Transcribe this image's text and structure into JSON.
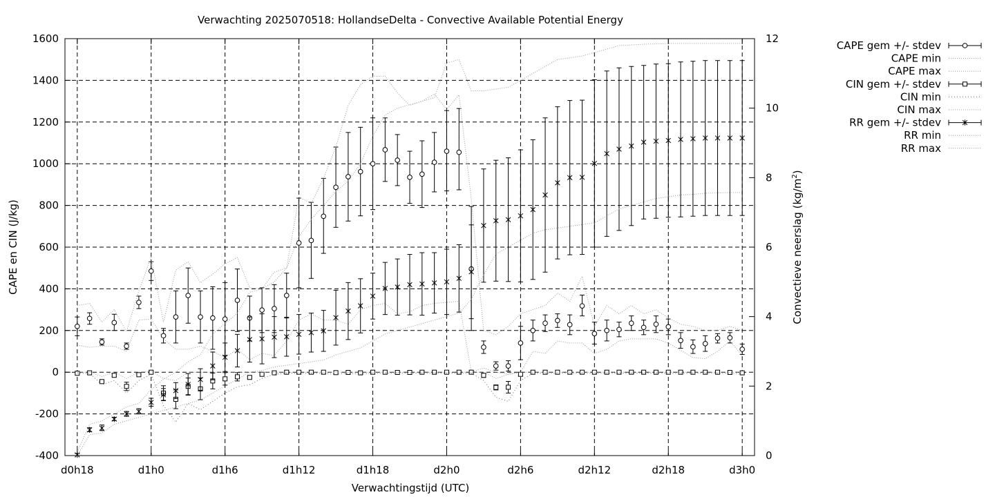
{
  "chart_data": {
    "type": "errorbar",
    "title": "Verwachting 2025070518: HollandseDelta - Convective Available Potential Energy",
    "xlabel": "Verwachtingstijd (UTC)",
    "ylabel": "CAPE en CIN (J/kg)",
    "y2label_prefix": "Convectieve neerslag (kg/m",
    "y2label_sup": "2",
    "y2label_suffix": ")",
    "x_unit": "forecast hours from d0h18",
    "xlim": [
      -1,
      55
    ],
    "ylim": [
      -400,
      1600
    ],
    "y2lim": [
      0,
      12
    ],
    "grid": true,
    "legend_position": "outside-right",
    "x_ticks": [
      {
        "x": 0,
        "label": "d0h18"
      },
      {
        "x": 6,
        "label": "d1h0"
      },
      {
        "x": 12,
        "label": "d1h6"
      },
      {
        "x": 18,
        "label": "d1h12"
      },
      {
        "x": 24,
        "label": "d1h18"
      },
      {
        "x": 30,
        "label": "d2h0"
      },
      {
        "x": 36,
        "label": "d2h6"
      },
      {
        "x": 42,
        "label": "d2h12"
      },
      {
        "x": 48,
        "label": "d2h18"
      },
      {
        "x": 54,
        "label": "d3h0"
      }
    ],
    "y_ticks": [
      -400,
      -200,
      0,
      200,
      400,
      600,
      800,
      1000,
      1200,
      1400,
      1600
    ],
    "y2_ticks": [
      0,
      2,
      4,
      6,
      8,
      10,
      12
    ],
    "legend": [
      {
        "label": "CAPE gem +/- stdev",
        "marker": "circle",
        "style": "errorbar"
      },
      {
        "label": "CAPE min",
        "style": "dotted"
      },
      {
        "label": "CAPE max",
        "style": "dotted"
      },
      {
        "label": "CIN gem +/- stdev",
        "marker": "square",
        "style": "errorbar"
      },
      {
        "label": "CIN min",
        "style": "dotted-dense"
      },
      {
        "label": "CIN max",
        "style": "dotted"
      },
      {
        "label": "RR gem +/- stdev",
        "marker": "star",
        "style": "errorbar"
      },
      {
        "label": "RR min",
        "style": "dotted"
      },
      {
        "label": "RR max",
        "style": "dotted"
      }
    ],
    "x": [
      0,
      1,
      2,
      3,
      4,
      5,
      6,
      7,
      8,
      9,
      10,
      11,
      12,
      13,
      14,
      15,
      16,
      17,
      18,
      19,
      20,
      21,
      22,
      23,
      24,
      25,
      26,
      27,
      28,
      29,
      30,
      31,
      32,
      33,
      34,
      35,
      36,
      37,
      38,
      39,
      40,
      41,
      42,
      43,
      44,
      45,
      46,
      47,
      48,
      49,
      50,
      51,
      52,
      53,
      54
    ],
    "series": [
      {
        "name": "CAPE gem +/- stdev",
        "axis": "y",
        "marker": "circle",
        "mean": [
          220,
          258,
          145,
          238,
          125,
          335,
          485,
          175,
          265,
          368,
          265,
          260,
          255,
          345,
          260,
          298,
          305,
          368,
          620,
          632,
          748,
          887,
          938,
          962,
          1000,
          1067,
          1017,
          935,
          950,
          1007,
          1060,
          1055,
          495,
          120,
          30,
          30,
          140,
          200,
          235,
          248,
          228,
          318,
          185,
          200,
          205,
          235,
          215,
          230,
          218,
          152,
          122,
          137,
          163,
          165,
          110
        ],
        "lower": [
          175,
          230,
          130,
          200,
          110,
          305,
          440,
          140,
          140,
          235,
          140,
          110,
          80,
          195,
          150,
          190,
          190,
          260,
          405,
          450,
          570,
          695,
          725,
          750,
          780,
          915,
          895,
          810,
          790,
          865,
          870,
          875,
          200,
          90,
          10,
          5,
          60,
          150,
          195,
          215,
          180,
          270,
          135,
          150,
          170,
          200,
          180,
          190,
          180,
          115,
          90,
          100,
          140,
          140,
          85
        ],
        "upper": [
          265,
          285,
          160,
          278,
          140,
          365,
          530,
          210,
          390,
          500,
          390,
          410,
          430,
          495,
          365,
          405,
          420,
          475,
          835,
          815,
          930,
          1080,
          1150,
          1175,
          1220,
          1220,
          1140,
          1060,
          1110,
          1150,
          1255,
          1265,
          795,
          150,
          50,
          55,
          220,
          250,
          275,
          280,
          275,
          370,
          240,
          250,
          240,
          270,
          250,
          270,
          255,
          190,
          155,
          175,
          185,
          190,
          135
        ]
      },
      {
        "name": "CAPE min",
        "axis": "y",
        "style": "dotted",
        "values": [
          130,
          120,
          125,
          125,
          100,
          250,
          255,
          160,
          110,
          110,
          125,
          100,
          70,
          110,
          60,
          90,
          80,
          150,
          250,
          280,
          250,
          250,
          230,
          300,
          320,
          330,
          280,
          290,
          320,
          330,
          335,
          340,
          0,
          20,
          0,
          -10,
          0,
          100,
          90,
          150,
          140,
          140,
          90,
          110,
          150,
          160,
          160,
          160,
          140,
          105,
          70,
          65,
          100,
          150,
          80
        ]
      },
      {
        "name": "CAPE max",
        "axis": "y",
        "style": "dotted",
        "values": [
          320,
          330,
          240,
          300,
          195,
          390,
          550,
          240,
          490,
          530,
          430,
          470,
          520,
          550,
          405,
          400,
          480,
          500,
          840,
          810,
          930,
          1080,
          1280,
          1380,
          1420,
          1420,
          1340,
          1280,
          1300,
          1335,
          1260,
          1330,
          830,
          200,
          180,
          220,
          280,
          300,
          320,
          380,
          340,
          460,
          220,
          320,
          280,
          320,
          280,
          300,
          260,
          230,
          220,
          200,
          200,
          220,
          200
        ]
      },
      {
        "name": "CIN gem +/- stdev",
        "axis": "y",
        "marker": "square",
        "mean": [
          -5,
          -3,
          -45,
          -15,
          -68,
          -12,
          0,
          -100,
          -130,
          -68,
          -80,
          -42,
          -32,
          -22,
          -25,
          -10,
          -3,
          0,
          0,
          0,
          0,
          -2,
          -1,
          -3,
          0,
          0,
          -1,
          -1,
          0,
          0,
          0,
          0,
          0,
          -15,
          -73,
          -72,
          -10,
          0,
          0,
          0,
          0,
          0,
          0,
          0,
          0,
          0,
          0,
          0,
          0,
          0,
          0,
          0,
          0,
          -1,
          -3
        ],
        "lower": [
          -5,
          -3,
          -50,
          -22,
          -88,
          -15,
          -3,
          -135,
          -175,
          -108,
          -132,
          -80,
          -62,
          -42,
          -30,
          -13,
          -5,
          -1,
          -1,
          -1,
          -1,
          -3,
          -2,
          -4,
          -1,
          -1,
          -2,
          -2,
          -1,
          -1,
          -1,
          -1,
          -1,
          -25,
          -85,
          -100,
          -18,
          -1,
          -1,
          -1,
          -1,
          -1,
          -1,
          -1,
          -1,
          -1,
          -1,
          -1,
          -1,
          -1,
          -1,
          -1,
          -1,
          -2,
          -4
        ],
        "upper": [
          -5,
          -3,
          -40,
          -8,
          -48,
          -9,
          3,
          -65,
          -85,
          -28,
          -28,
          -4,
          -2,
          -2,
          -20,
          -7,
          -1,
          1,
          1,
          1,
          1,
          -1,
          0,
          -2,
          1,
          1,
          0,
          0,
          1,
          1,
          1,
          1,
          1,
          -5,
          -61,
          -44,
          -2,
          1,
          1,
          1,
          1,
          1,
          1,
          1,
          1,
          1,
          1,
          1,
          1,
          1,
          1,
          1,
          1,
          0,
          -2
        ]
      },
      {
        "name": "CIN min",
        "axis": "y",
        "style": "dotted-dense",
        "values": [
          -5,
          -5,
          -60,
          -40,
          -100,
          -40,
          -10,
          -160,
          -240,
          -150,
          -180,
          -140,
          -100,
          -70,
          -60,
          -30,
          -10,
          -5,
          -5,
          -5,
          -5,
          -10,
          -5,
          -10,
          -5,
          -5,
          -5,
          -5,
          -5,
          -5,
          -5,
          -5,
          -5,
          -40,
          -120,
          -140,
          -40,
          -5,
          -5,
          -5,
          -5,
          -5,
          -5,
          -5,
          -5,
          -5,
          -5,
          -5,
          -5,
          -5,
          -5,
          -5,
          -5,
          -5,
          -10
        ]
      },
      {
        "name": "CIN max",
        "axis": "y",
        "style": "dotted",
        "values": [
          0,
          0,
          -20,
          0,
          -30,
          0,
          5,
          -30,
          -40,
          0,
          0,
          0,
          0,
          0,
          0,
          0,
          0,
          0,
          0,
          0,
          0,
          0,
          0,
          0,
          0,
          0,
          0,
          0,
          0,
          0,
          0,
          0,
          0,
          0,
          -30,
          -10,
          0,
          0,
          0,
          0,
          0,
          0,
          0,
          0,
          0,
          0,
          0,
          0,
          0,
          0,
          0,
          0,
          0,
          0,
          0
        ]
      },
      {
        "name": "RR gem +/- stdev",
        "axis": "y2",
        "marker": "star",
        "mean": [
          0.02,
          0.74,
          0.79,
          1.05,
          1.2,
          1.27,
          1.53,
          1.75,
          1.87,
          2.05,
          2.19,
          2.58,
          2.83,
          3.02,
          3.34,
          3.36,
          3.41,
          3.42,
          3.49,
          3.54,
          3.59,
          3.97,
          4.16,
          4.31,
          4.59,
          4.81,
          4.85,
          4.92,
          4.94,
          4.97,
          5.0,
          5.1,
          5.29,
          6.62,
          6.76,
          6.79,
          6.9,
          7.08,
          7.5,
          7.85,
          8.0,
          8.01,
          8.41,
          8.69,
          8.82,
          8.91,
          9.02,
          9.05,
          9.07,
          9.1,
          9.12,
          9.14,
          9.14,
          9.14,
          9.14
        ],
        "lower": [
          0.0,
          0.69,
          0.72,
          1.01,
          1.13,
          1.2,
          1.42,
          1.58,
          1.64,
          1.74,
          1.88,
          2.18,
          2.42,
          2.55,
          2.69,
          2.64,
          2.82,
          2.86,
          2.92,
          2.98,
          3.0,
          3.18,
          3.34,
          3.53,
          3.93,
          4.06,
          4.04,
          4.05,
          4.04,
          4.1,
          4.06,
          4.13,
          3.94,
          4.99,
          5.02,
          5.01,
          5.0,
          5.07,
          5.28,
          5.66,
          5.78,
          5.79,
          6.0,
          6.31,
          6.48,
          6.62,
          6.81,
          6.83,
          6.86,
          6.87,
          6.89,
          6.91,
          6.91,
          6.91,
          6.91
        ],
        "upper": [
          0.06,
          0.8,
          0.88,
          1.1,
          1.27,
          1.35,
          1.65,
          1.93,
          2.1,
          2.36,
          2.5,
          2.98,
          3.24,
          3.49,
          3.99,
          4.08,
          4.0,
          3.98,
          4.06,
          4.1,
          4.18,
          4.76,
          4.98,
          5.09,
          5.25,
          5.56,
          5.66,
          5.79,
          5.84,
          5.84,
          5.94,
          6.07,
          6.64,
          8.25,
          8.5,
          8.57,
          8.8,
          9.09,
          9.72,
          10.04,
          10.22,
          10.23,
          10.82,
          11.07,
          11.16,
          11.2,
          11.23,
          11.27,
          11.28,
          11.33,
          11.35,
          11.37,
          11.37,
          11.37,
          11.37
        ]
      },
      {
        "name": "RR min",
        "axis": "y2",
        "style": "dotted",
        "values": [
          0.0,
          0.6,
          0.65,
          0.9,
          1.0,
          1.1,
          1.2,
          1.3,
          1.4,
          1.5,
          1.6,
          1.8,
          2.0,
          2.2,
          2.4,
          2.45,
          2.55,
          2.6,
          2.65,
          2.7,
          2.75,
          2.9,
          3.0,
          3.1,
          3.3,
          3.5,
          3.6,
          3.7,
          3.8,
          3.9,
          4.0,
          4.1,
          4.5,
          5.2,
          5.8,
          6.0,
          6.2,
          6.4,
          6.5,
          6.55,
          6.6,
          6.65,
          6.7,
          6.9,
          7.1,
          7.2,
          7.3,
          7.4,
          7.45,
          7.5,
          7.52,
          7.55,
          7.56,
          7.57,
          7.57
        ]
      },
      {
        "name": "RR max",
        "axis": "y2",
        "style": "dotted",
        "values": [
          0.1,
          0.9,
          1.0,
          1.2,
          1.4,
          1.5,
          1.9,
          2.2,
          2.4,
          2.7,
          2.9,
          3.5,
          3.8,
          4.1,
          4.7,
          4.8,
          5.0,
          5.4,
          6.3,
          6.8,
          7.2,
          7.6,
          7.9,
          8.4,
          9.2,
          9.8,
          10.0,
          10.1,
          10.2,
          10.3,
          11.3,
          11.4,
          10.5,
          10.5,
          10.55,
          10.6,
          10.8,
          11.0,
          11.2,
          11.4,
          11.45,
          11.5,
          11.6,
          11.7,
          11.8,
          11.82,
          11.84,
          11.85,
          11.86,
          11.86,
          11.86,
          11.86,
          11.86,
          11.86,
          11.86
        ]
      }
    ]
  }
}
